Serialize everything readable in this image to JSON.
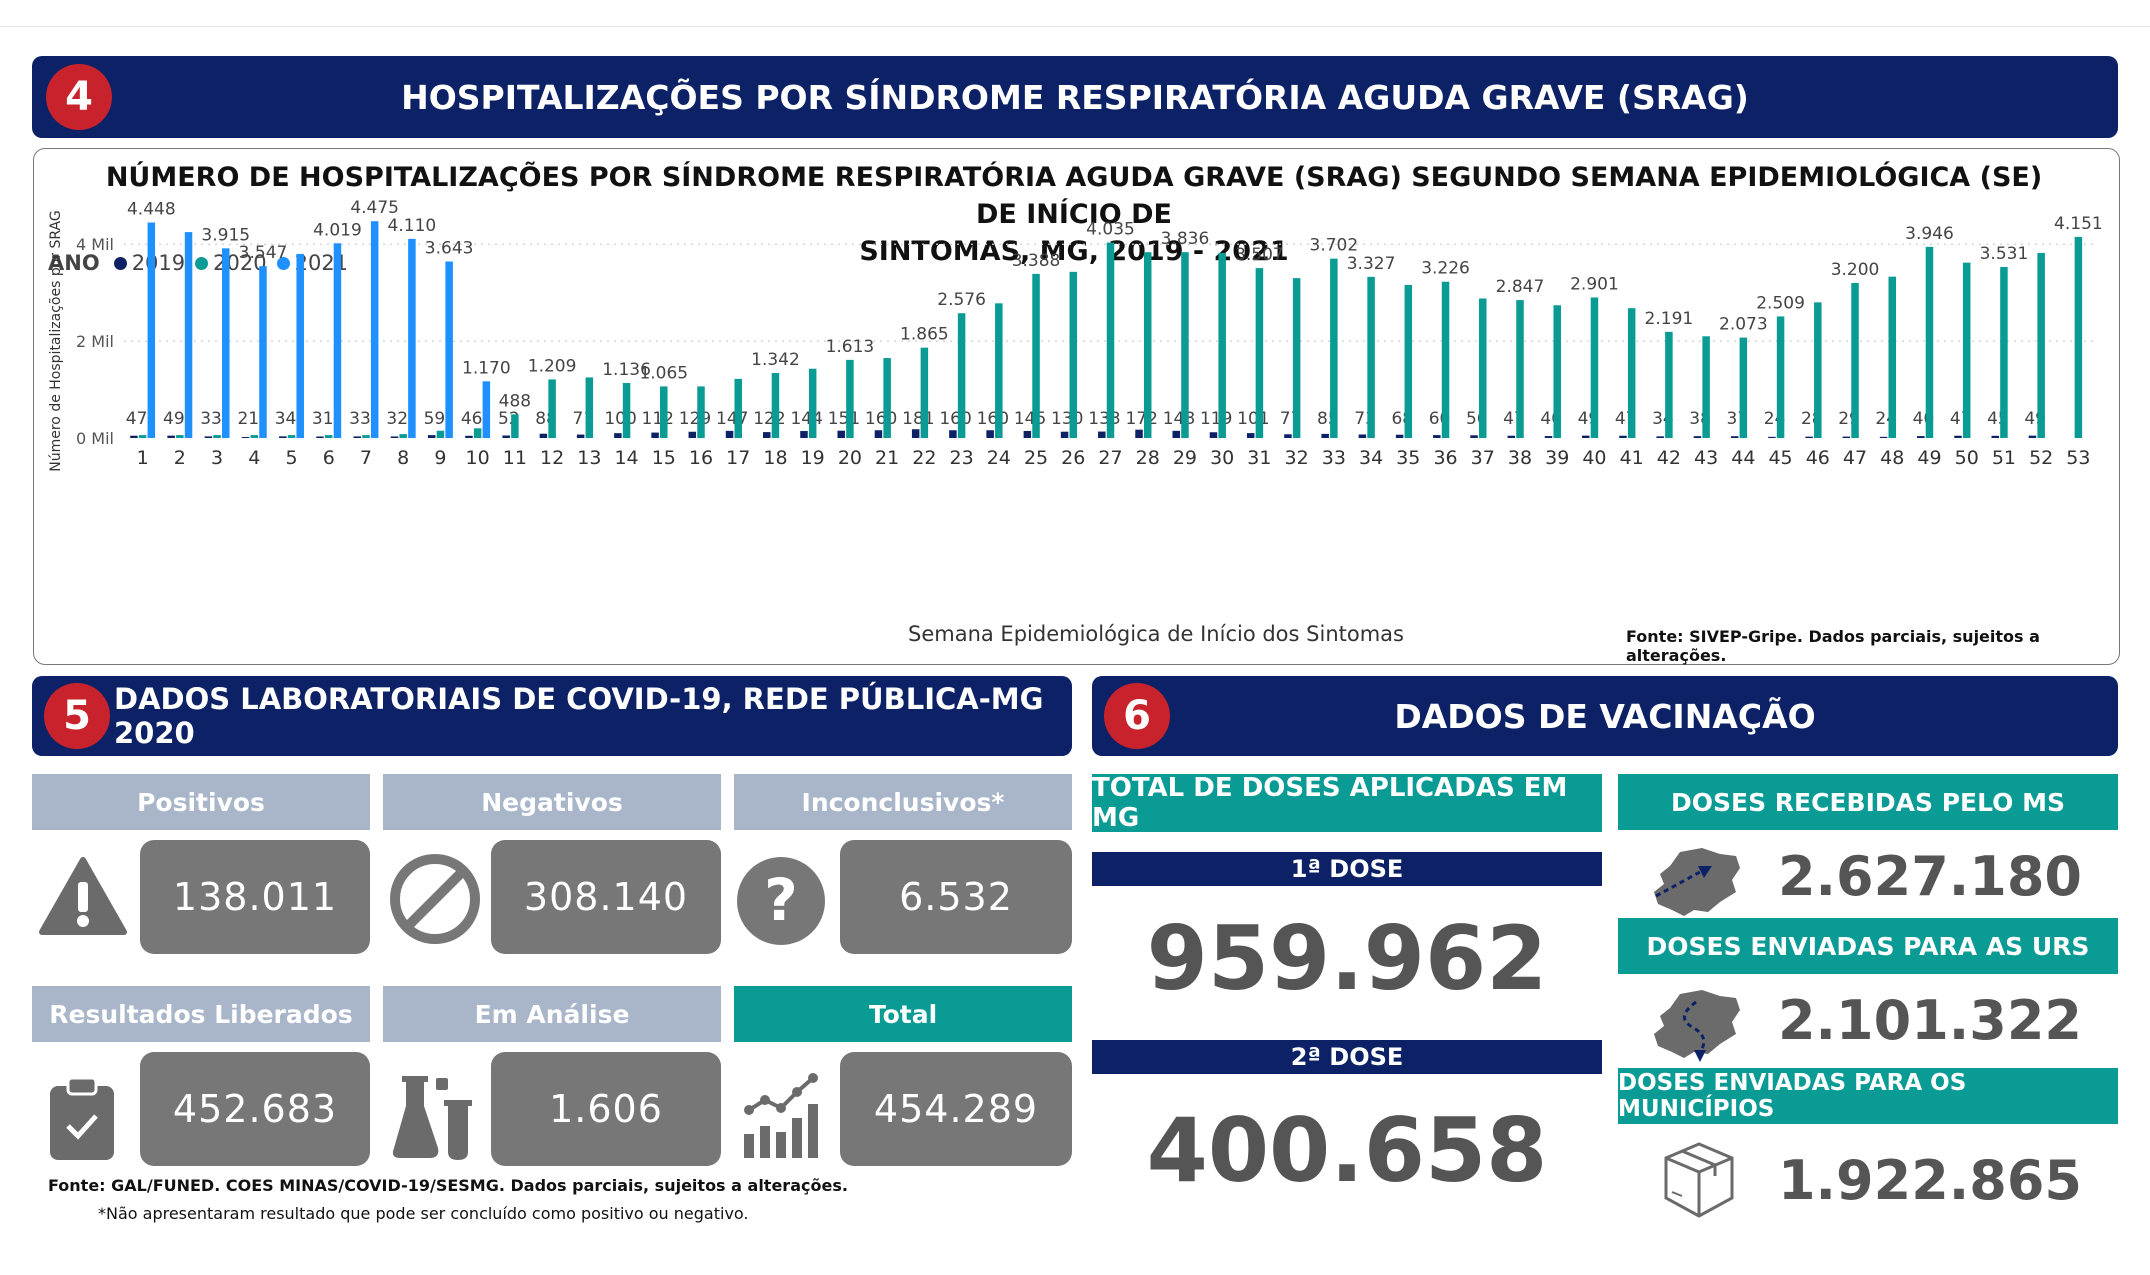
{
  "section4": {
    "badge": "4",
    "title": "HOSPITALIZAÇÕES POR SÍNDROME RESPIRATÓRIA AGUDA GRAVE (SRAG)"
  },
  "section5": {
    "badge": "5",
    "title": "DADOS LABORATORIAIS DE COVID-19, REDE PÚBLICA-MG 2020"
  },
  "section6": {
    "badge": "6",
    "title": "DADOS DE VACINAÇÃO"
  },
  "chart_data": {
    "type": "bar",
    "title_line1": "NÚMERO DE HOSPITALIZAÇÕES POR SÍNDROME RESPIRATÓRIA AGUDA GRAVE (SRAG) SEGUNDO SEMANA EPIDEMIOLÓGICA (SE) DE INÍCIO DE",
    "title_line2": "SINTOMAS, MG, 2019 - 2021",
    "legend_title": "ANO",
    "xlabel": "Semana Epidemiológica de Início dos Sintomas",
    "ylabel": "Número de Hospitalizações por SRAG",
    "ylim": [
      0,
      4500
    ],
    "yticks": [
      {
        "value": 0,
        "label": "0 Mil"
      },
      {
        "value": 2000,
        "label": "2 Mil"
      },
      {
        "value": 4000,
        "label": "4 Mil"
      }
    ],
    "grid": true,
    "categories": [
      "1",
      "2",
      "3",
      "4",
      "5",
      "6",
      "7",
      "8",
      "9",
      "10",
      "11",
      "12",
      "13",
      "14",
      "15",
      "16",
      "17",
      "18",
      "19",
      "20",
      "21",
      "22",
      "23",
      "24",
      "25",
      "26",
      "27",
      "28",
      "29",
      "30",
      "31",
      "32",
      "33",
      "34",
      "35",
      "36",
      "37",
      "38",
      "39",
      "40",
      "41",
      "42",
      "43",
      "44",
      "45",
      "46",
      "47",
      "48",
      "49",
      "50",
      "51",
      "52",
      "53"
    ],
    "series": [
      {
        "name": "2019",
        "color": "#0d2266",
        "values": [
          47,
          49,
          33,
          21,
          34,
          31,
          33,
          32,
          59,
          46,
          52,
          88,
          71,
          100,
          112,
          129,
          147,
          122,
          144,
          151,
          160,
          181,
          160,
          160,
          145,
          130,
          133,
          172,
          148,
          119,
          101,
          77,
          85,
          73,
          68,
          60,
          56,
          47,
          40,
          49,
          47,
          34,
          38,
          37,
          24,
          28,
          29,
          24,
          40,
          47,
          45,
          49,
          null
        ],
        "labels": [
          "47",
          "49",
          "33",
          "21",
          "34",
          "31",
          "33",
          "32",
          "59",
          "46",
          "52",
          "88",
          "71",
          "100",
          "112",
          "129",
          "147",
          "122",
          "144",
          "151",
          "160",
          "181",
          "160",
          "160",
          "145",
          "130",
          "133",
          "172",
          "148",
          "119",
          "101",
          "77",
          "85",
          "73",
          "68",
          "60",
          "56",
          "47",
          "40",
          "49",
          "47",
          "34",
          "38",
          "37",
          "24",
          "28",
          "29",
          "24",
          "40",
          "47",
          "45",
          "49",
          ""
        ]
      },
      {
        "name": "2020",
        "color": "#0b9b95",
        "values": [
          60,
          60,
          60,
          60,
          60,
          60,
          60,
          80,
          150,
          200,
          488,
          1209,
          1250,
          1136,
          1065,
          1065,
          1220,
          1342,
          1430,
          1613,
          1650,
          1865,
          2576,
          2780,
          3388,
          3430,
          4035,
          3836,
          3836,
          3820,
          3507,
          3300,
          3702,
          3327,
          3160,
          3226,
          2880,
          2847,
          2740,
          2901,
          2680,
          2191,
          2100,
          2073,
          2509,
          2800,
          3200,
          3330,
          3946,
          3620,
          3531,
          3820,
          4151
        ],
        "labels": [
          "",
          "",
          "",
          "",
          "",
          "",
          "",
          "",
          "",
          "",
          "488",
          "1.209",
          "",
          "1.136",
          "1.065",
          "",
          "",
          "1.342",
          "",
          "1.613",
          "",
          "1.865",
          "2.576",
          "",
          "3.388",
          "",
          "4.035",
          "",
          "3.836",
          "",
          "3.507",
          "",
          "3.702",
          "3.327",
          "",
          "3.226",
          "",
          "2.847",
          "",
          "2.901",
          "",
          "2.191",
          "",
          "2.073",
          "2.509",
          "",
          "3.200",
          "",
          "3.946",
          "",
          "3.531",
          "",
          "4.151"
        ]
      },
      {
        "name": "2021",
        "color": "#1e90ff",
        "values": [
          4448,
          4250,
          3915,
          3547,
          3800,
          4019,
          4475,
          4110,
          3643,
          1170,
          null,
          null,
          null,
          null,
          null,
          null,
          null,
          null,
          null,
          null,
          null,
          null,
          null,
          null,
          null,
          null,
          null,
          null,
          null,
          null,
          null,
          null,
          null,
          null,
          null,
          null,
          null,
          null,
          null,
          null,
          null,
          null,
          null,
          null,
          null,
          null,
          null,
          null,
          null,
          null,
          null,
          null,
          null
        ],
        "labels": [
          "4.448",
          "",
          "3.915",
          "3.547",
          "",
          "4.019",
          "4.475",
          "4.110",
          "3.643",
          "1.170",
          "",
          "",
          "",
          "",
          "",
          "",
          "",
          "",
          "",
          "",
          "",
          "",
          "",
          "",
          "",
          "",
          "",
          "",
          "",
          "",
          "",
          "",
          "",
          "",
          "",
          "",
          "",
          "",
          "",
          "",
          "",
          "",
          "",
          "",
          "",
          "",
          "",
          "",
          "",
          "",
          "",
          "",
          ""
        ]
      }
    ]
  },
  "chart_source": "Fonte: SIVEP-Gripe. Dados parciais, sujeitos a alterações.",
  "lab": {
    "positivos": {
      "label": "Positivos",
      "value": "138.011",
      "icon": "warning-icon"
    },
    "negativos": {
      "label": "Negativos",
      "value": "308.140",
      "icon": "prohibited-icon"
    },
    "inconclusivos": {
      "label": "Inconclusivos*",
      "value": "6.532",
      "icon": "question-icon"
    },
    "liberados": {
      "label": "Resultados Liberados",
      "value": "452.683",
      "icon": "clipboard-check-icon"
    },
    "analise": {
      "label": "Em Análise",
      "value": "1.606",
      "icon": "lab-flasks-icon"
    },
    "total": {
      "label": "Total",
      "value": "454.289",
      "icon": "bar-chart-trend-icon"
    },
    "source": "Fonte: GAL/FUNED. COES MINAS/COVID-19/SESMG. Dados parciais, sujeitos a alterações.",
    "footnote": "*Não apresentaram resultado que pode ser concluído como positivo ou negativo.",
    "head_color": "#a9b6c9",
    "total_head_color": "#0b9b95"
  },
  "vac": {
    "total_title": "TOTAL DE DOSES APLICADAS EM MG",
    "dose1_label": "1ª DOSE",
    "dose1_value": "959.962",
    "dose2_label": "2ª DOSE",
    "dose2_value": "400.658",
    "recebidas_title": "DOSES RECEBIDAS PELO MS",
    "recebidas_value": "2.627.180",
    "urs_title": "DOSES ENVIADAS PARA AS URS",
    "urs_value": "2.101.322",
    "municipios_title": "DOSES ENVIADAS PARA OS MUNICÍPIOS",
    "municipios_value": "1.922.865",
    "icons": [
      "mg-map-arrow-icon",
      "mg-map-route-icon",
      "package-box-icon"
    ]
  }
}
